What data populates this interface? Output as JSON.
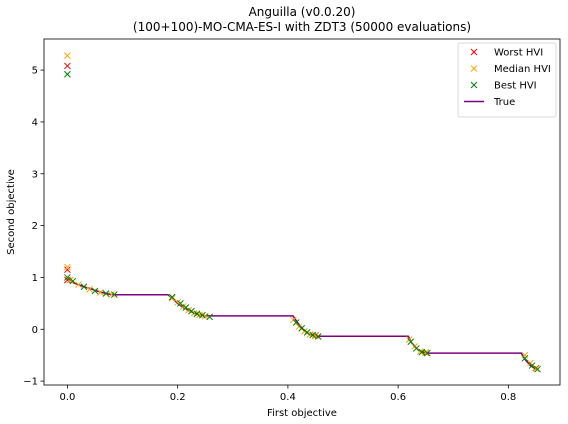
{
  "chart_data": {
    "type": "scatter",
    "title_line1": "Anguilla (v0.0.20)",
    "title_line2": "(100+100)-MO-CMA-ES-I with ZDT3 (50000 evaluations)",
    "xlabel": "First objective",
    "ylabel": "Second objective",
    "xlim": [
      -0.0425,
      0.8937
    ],
    "ylim": [
      -1.075,
      5.6
    ],
    "xticks": [
      0.0,
      0.2,
      0.4,
      0.6,
      0.8
    ],
    "xtick_labels": [
      "0.0",
      "0.2",
      "0.4",
      "0.6",
      "0.8"
    ],
    "yticks": [
      -1,
      0,
      1,
      2,
      3,
      4,
      5
    ],
    "ytick_labels": [
      "−1",
      "0",
      "1",
      "2",
      "3",
      "4",
      "5"
    ],
    "legend_position": "top-right",
    "series": [
      {
        "name": "Worst HVI",
        "marker": "x",
        "color": "#ff0000",
        "x": [
          0.0,
          0.0,
          0.0,
          0.45,
          0.65,
          0.85
        ],
        "y": [
          5.08,
          1.15,
          0.95,
          -0.12,
          -0.45,
          -0.75
        ]
      },
      {
        "name": "Median HVI",
        "marker": "x",
        "color": "#ffa500",
        "x": [
          0.0,
          0.0,
          0.005,
          0.02,
          0.04,
          0.06,
          0.08,
          0.19,
          0.2,
          0.21,
          0.22,
          0.23,
          0.24,
          0.25,
          0.41,
          0.42,
          0.43,
          0.44,
          0.45,
          0.62,
          0.63,
          0.64,
          0.65,
          0.83,
          0.84,
          0.85
        ],
        "y": [
          5.28,
          1.2,
          0.95,
          0.86,
          0.77,
          0.71,
          0.67,
          0.6,
          0.52,
          0.44,
          0.37,
          0.31,
          0.28,
          0.25,
          0.18,
          0.05,
          -0.04,
          -0.1,
          -0.13,
          -0.2,
          -0.33,
          -0.43,
          -0.45,
          -0.5,
          -0.65,
          -0.76
        ]
      },
      {
        "name": "Best HVI",
        "marker": "x",
        "color": "#008000",
        "x": [
          0.0,
          0.0,
          0.01,
          0.03,
          0.05,
          0.07,
          0.085,
          0.19,
          0.205,
          0.215,
          0.225,
          0.235,
          0.245,
          0.258,
          0.415,
          0.425,
          0.435,
          0.445,
          0.455,
          0.623,
          0.633,
          0.643,
          0.653,
          0.83,
          0.843,
          0.853
        ],
        "y": [
          4.92,
          1.0,
          0.93,
          0.82,
          0.74,
          0.69,
          0.67,
          0.62,
          0.5,
          0.42,
          0.35,
          0.3,
          0.27,
          0.24,
          0.13,
          0.02,
          -0.06,
          -0.11,
          -0.14,
          -0.24,
          -0.37,
          -0.44,
          -0.46,
          -0.56,
          -0.7,
          -0.77
        ]
      },
      {
        "name": "True",
        "marker": "line",
        "color": "#800080",
        "x": [
          0.0,
          0.01,
          0.02,
          0.03,
          0.04,
          0.05,
          0.06,
          0.07,
          0.08,
          0.0852,
          0.1822,
          0.19,
          0.2,
          0.21,
          0.22,
          0.23,
          0.24,
          0.25,
          0.2578,
          0.4093,
          0.42,
          0.43,
          0.44,
          0.4519,
          0.6184,
          0.625,
          0.635,
          0.645,
          0.6523,
          0.8233,
          0.83,
          0.84,
          0.85,
          0.8518
        ],
        "y": [
          1.0,
          0.9,
          0.86,
          0.82,
          0.79,
          0.75,
          0.72,
          0.69,
          0.67,
          0.6661,
          0.6661,
          0.6,
          0.5,
          0.42,
          0.36,
          0.31,
          0.28,
          0.26,
          0.2577,
          0.2577,
          0.09,
          -0.03,
          -0.1,
          -0.1334,
          -0.1334,
          -0.27,
          -0.38,
          -0.44,
          -0.4587,
          -0.4587,
          -0.58,
          -0.7,
          -0.77,
          -0.7733
        ]
      }
    ]
  }
}
